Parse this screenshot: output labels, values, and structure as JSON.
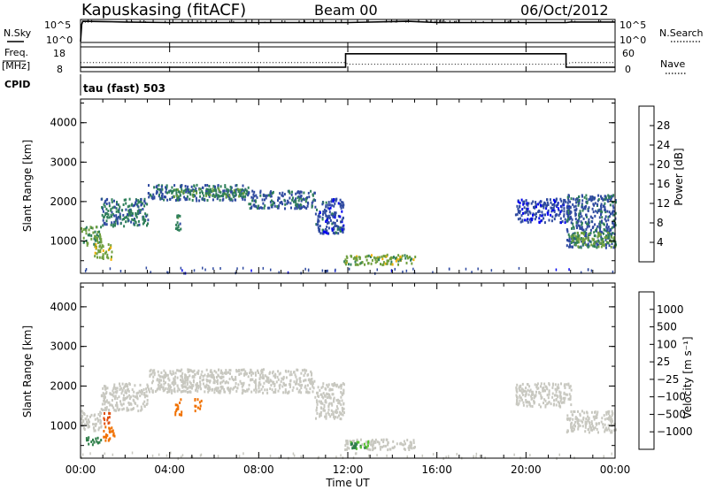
{
  "header": {
    "station": "Kapuskasing (fitACF)",
    "beam": "Beam 00",
    "date": "06/Oct/2012"
  },
  "top_panels": {
    "nsky_label": "N.Sky",
    "nsearch_label": "N.Search",
    "freq_label_1": "Freq.",
    "freq_label_2": "[MHz]",
    "nave_label": "Nave",
    "cpid_label": "CPID",
    "cpid_text": "tau (fast) 503",
    "noise_ticks": [
      "10^5",
      "10^0"
    ],
    "freq_ticks": [
      "18",
      "8"
    ],
    "nave_ticks": [
      "60",
      "0"
    ]
  },
  "x_axis": {
    "label": "Time UT",
    "ticks": [
      "00:00",
      "04:00",
      "08:00",
      "12:00",
      "16:00",
      "20:00",
      "00:00"
    ]
  },
  "power_panel": {
    "ylabel": "Slant Range [km]",
    "yticks": [
      "4000",
      "3000",
      "2000",
      "1000"
    ],
    "colorbar_label": "Power [dB]",
    "colorbar_ticks": [
      "28",
      "24",
      "20",
      "16",
      "12",
      "8",
      "4"
    ],
    "colors": [
      "#0000f0",
      "#2f4aa0",
      "#2f7f5a",
      "#6f9f3f",
      "#f0b000",
      "#f07000",
      "#e00000"
    ]
  },
  "velocity_panel": {
    "ylabel": "Slant Range [km]",
    "yticks": [
      "4000",
      "3000",
      "2000",
      "1000"
    ],
    "colorbar_label": "Velocity [m s⁻¹]",
    "colorbar_ticks": [
      "1000",
      "500",
      "100",
      "25",
      "−25",
      "−100",
      "−500",
      "−1000"
    ],
    "colors": [
      "#2040c0",
      "#3a5aa0",
      "#2f7f4a",
      "#55c030",
      "#c8c8c0",
      "#f0a000",
      "#f07000",
      "#e05010",
      "#e00000"
    ]
  },
  "chart_data": [
    {
      "type": "line",
      "title": "N.Sky / N.Search",
      "x_units": "hours UT",
      "xlim": [
        0,
        24
      ],
      "y_scale": "log",
      "ylim": [
        1,
        100000
      ],
      "series": [
        {
          "name": "N.Sky",
          "x": [
            0,
            0.05,
            0.1,
            1,
            2,
            4,
            8,
            12,
            14.7,
            16,
            20,
            21.8,
            22,
            24
          ],
          "y": [
            1,
            10000,
            60000,
            50000,
            40000,
            30000,
            30000,
            30000,
            60000,
            30000,
            30000,
            30000,
            40000,
            40000
          ]
        }
      ]
    },
    {
      "type": "line",
      "title": "Freq. [MHz] / Nave",
      "x_units": "hours UT",
      "xlim": [
        0,
        24
      ],
      "ylim": [
        8,
        18
      ],
      "y2lim": [
        0,
        60
      ],
      "series": [
        {
          "name": "Freq.",
          "x": [
            0,
            11.9,
            11.9,
            21.8,
            21.8,
            24
          ],
          "y": [
            9.8,
            9.8,
            15.2,
            15.2,
            9.8,
            9.8
          ]
        },
        {
          "name": "Nave",
          "axis": "y2",
          "x": [
            0,
            11.9,
            12,
            21.8,
            22,
            24
          ],
          "y": [
            22,
            22,
            18,
            18,
            22,
            22
          ]
        }
      ]
    },
    {
      "type": "heatmap",
      "title": "Power [dB]",
      "x_units": "hours UT",
      "xlim": [
        0,
        24
      ],
      "ylim": [
        180,
        4600
      ],
      "colorbar": {
        "min": 0,
        "max": 32,
        "ticks": [
          4,
          8,
          12,
          16,
          20,
          24,
          28
        ]
      },
      "regions": [
        {
          "t0": 0.0,
          "t1": 0.9,
          "r0": 900,
          "r1": 1400,
          "value": 14
        },
        {
          "t0": 0.6,
          "t1": 1.4,
          "r0": 550,
          "r1": 950,
          "value": 17
        },
        {
          "t0": 0.9,
          "t1": 3.0,
          "r0": 1400,
          "r1": 2100,
          "value": 10
        },
        {
          "t0": 3.0,
          "t1": 7.5,
          "r0": 2050,
          "r1": 2450,
          "value": 9
        },
        {
          "t0": 4.0,
          "t1": 7.5,
          "r0": 2150,
          "r1": 2350,
          "value": 13
        },
        {
          "t0": 7.5,
          "t1": 10.5,
          "r0": 1850,
          "r1": 2300,
          "value": 8
        },
        {
          "t0": 10.5,
          "t1": 11.8,
          "r0": 1200,
          "r1": 2100,
          "value": 7
        },
        {
          "t0": 4.2,
          "t1": 4.5,
          "r0": 1300,
          "r1": 1700,
          "value": 11
        },
        {
          "t0": 11.8,
          "t1": 15.0,
          "r0": 420,
          "r1": 680,
          "value": 16
        },
        {
          "t0": 19.5,
          "t1": 22.0,
          "r0": 1500,
          "r1": 2100,
          "value": 6
        },
        {
          "t0": 21.8,
          "t1": 24.0,
          "r0": 850,
          "r1": 2200,
          "value": 8
        },
        {
          "t0": 22.0,
          "t1": 24.0,
          "r0": 850,
          "r1": 1250,
          "value": 15
        }
      ]
    },
    {
      "type": "heatmap",
      "title": "Velocity [m s⁻¹]",
      "x_units": "hours UT",
      "xlim": [
        0,
        24
      ],
      "ylim": [
        180,
        4600
      ],
      "colorbar": {
        "ticks": [
          1000,
          500,
          100,
          25,
          -25,
          -100,
          -500,
          -1000
        ]
      },
      "regions": [
        {
          "t0": 0.0,
          "t1": 0.9,
          "r0": 900,
          "r1": 1400,
          "value": 0
        },
        {
          "t0": 0.9,
          "t1": 3.0,
          "r0": 1400,
          "r1": 2100,
          "value": 0
        },
        {
          "t0": 3.0,
          "t1": 10.5,
          "r0": 1850,
          "r1": 2450,
          "value": 0
        },
        {
          "t0": 10.5,
          "t1": 11.8,
          "r0": 1200,
          "r1": 2100,
          "value": 0
        },
        {
          "t0": 1.0,
          "t1": 1.5,
          "r0": 650,
          "r1": 1000,
          "value": -400
        },
        {
          "t0": 0.2,
          "t1": 0.9,
          "r0": 550,
          "r1": 750,
          "value": 80
        },
        {
          "t0": 1.0,
          "t1": 1.3,
          "r0": 1050,
          "r1": 1350,
          "value": -700
        },
        {
          "t0": 4.2,
          "t1": 4.5,
          "r0": 1300,
          "r1": 1700,
          "value": -300
        },
        {
          "t0": 5.1,
          "t1": 5.4,
          "r0": 1400,
          "r1": 1700,
          "value": -300
        },
        {
          "t0": 11.8,
          "t1": 15.0,
          "r0": 420,
          "r1": 680,
          "value": 0
        },
        {
          "t0": 12.0,
          "t1": 13.0,
          "r0": 450,
          "r1": 650,
          "value": 60
        },
        {
          "t0": 19.5,
          "t1": 22.0,
          "r0": 1500,
          "r1": 2100,
          "value": 0
        },
        {
          "t0": 21.8,
          "t1": 24.0,
          "r0": 850,
          "r1": 1400,
          "value": 0
        }
      ]
    }
  ]
}
